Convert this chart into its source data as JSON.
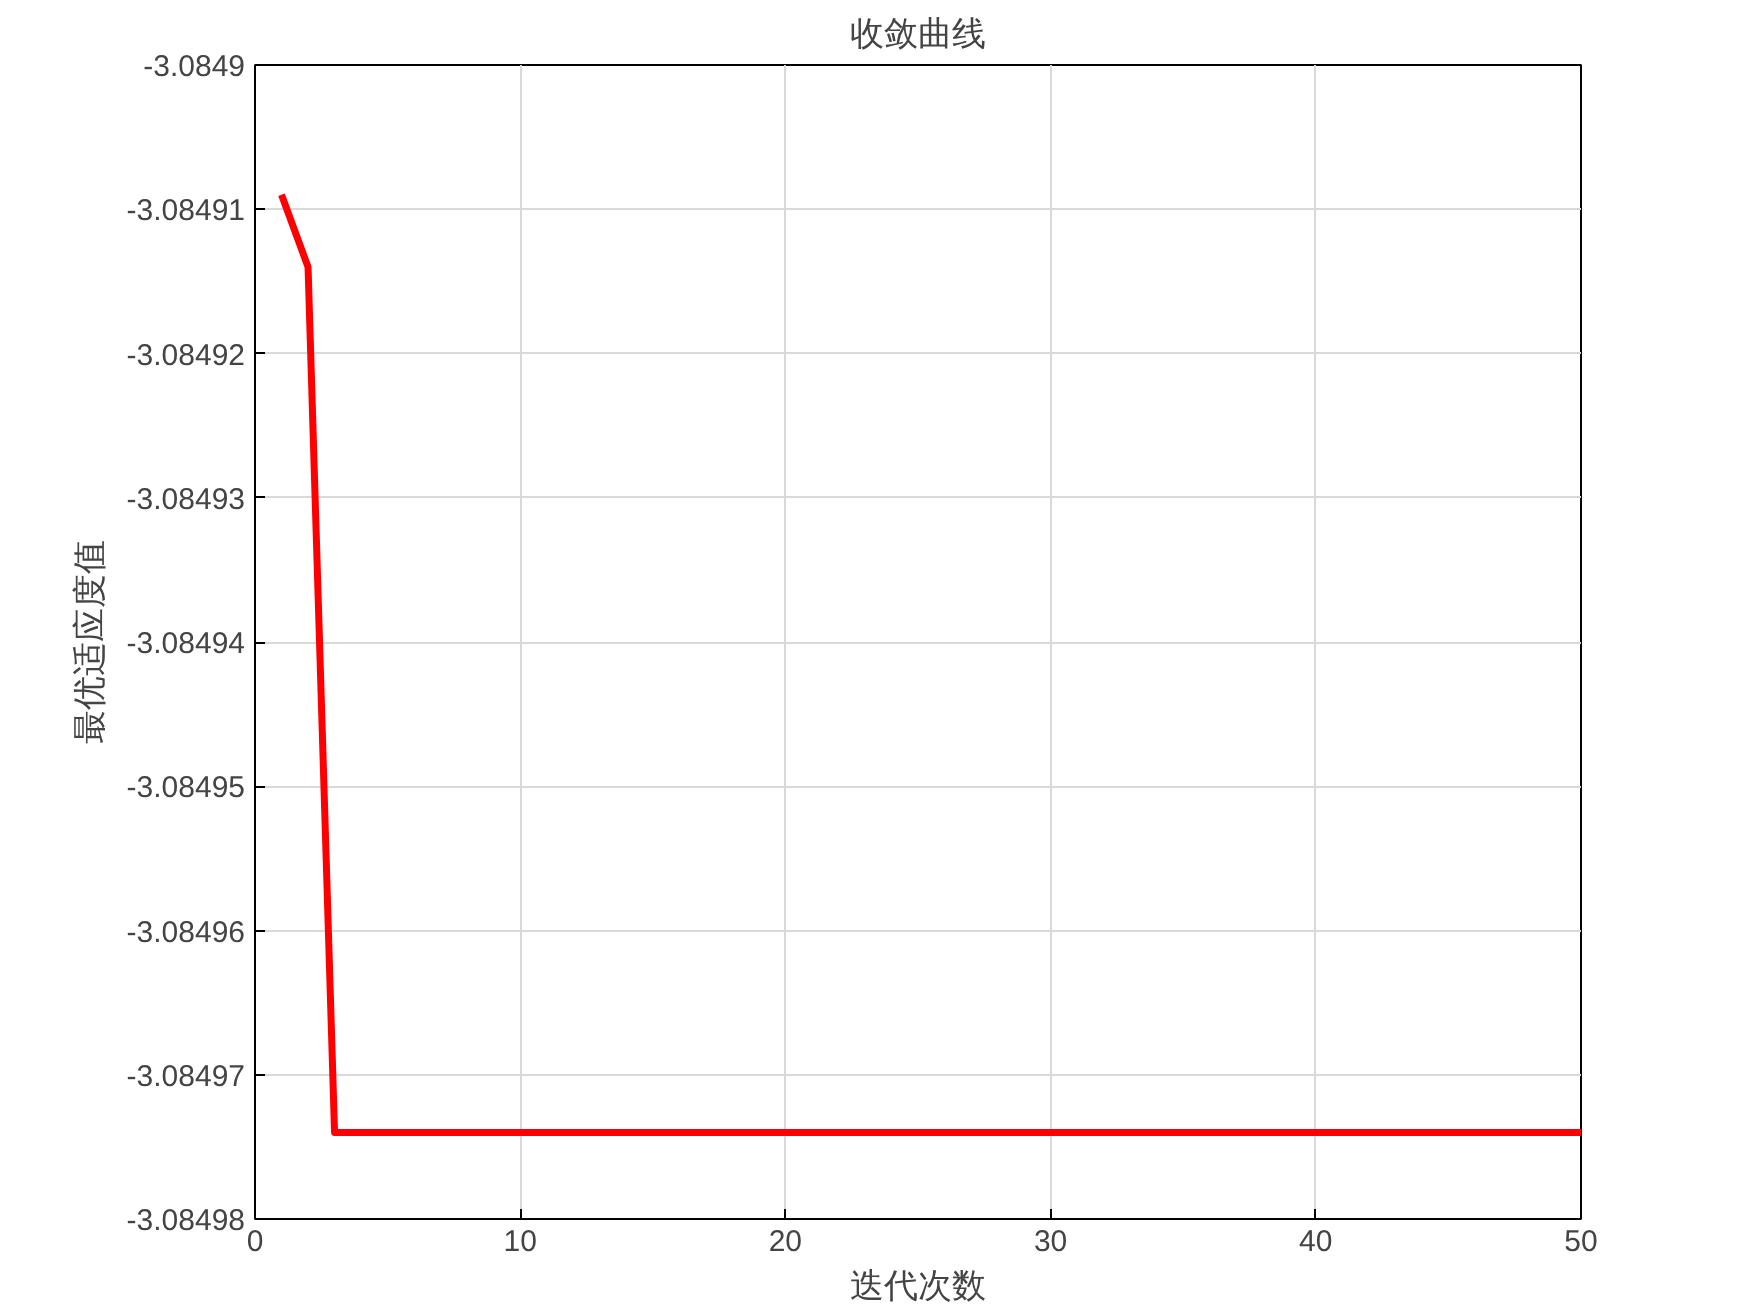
{
  "chart_data": {
    "type": "line",
    "title": "收敛曲线",
    "xlabel": "迭代次数",
    "ylabel": "最优适应度值",
    "series": [
      {
        "color": "#ff0000",
        "x": [
          1,
          2,
          3,
          50
        ],
        "values": [
          -3.084909,
          -3.084914,
          -3.084974,
          -3.084974
        ]
      }
    ],
    "xlim": [
      0,
      50
    ],
    "xticks": [
      0,
      10,
      20,
      30,
      40,
      50
    ],
    "ylim": [
      -3.08498,
      -3.0849
    ],
    "yticks": [
      -3.08498,
      -3.08497,
      -3.08496,
      -3.08495,
      -3.08494,
      -3.08493,
      -3.08492,
      -3.08491,
      -3.0849
    ],
    "grid": true,
    "line_style": "solid",
    "marker": "none"
  }
}
